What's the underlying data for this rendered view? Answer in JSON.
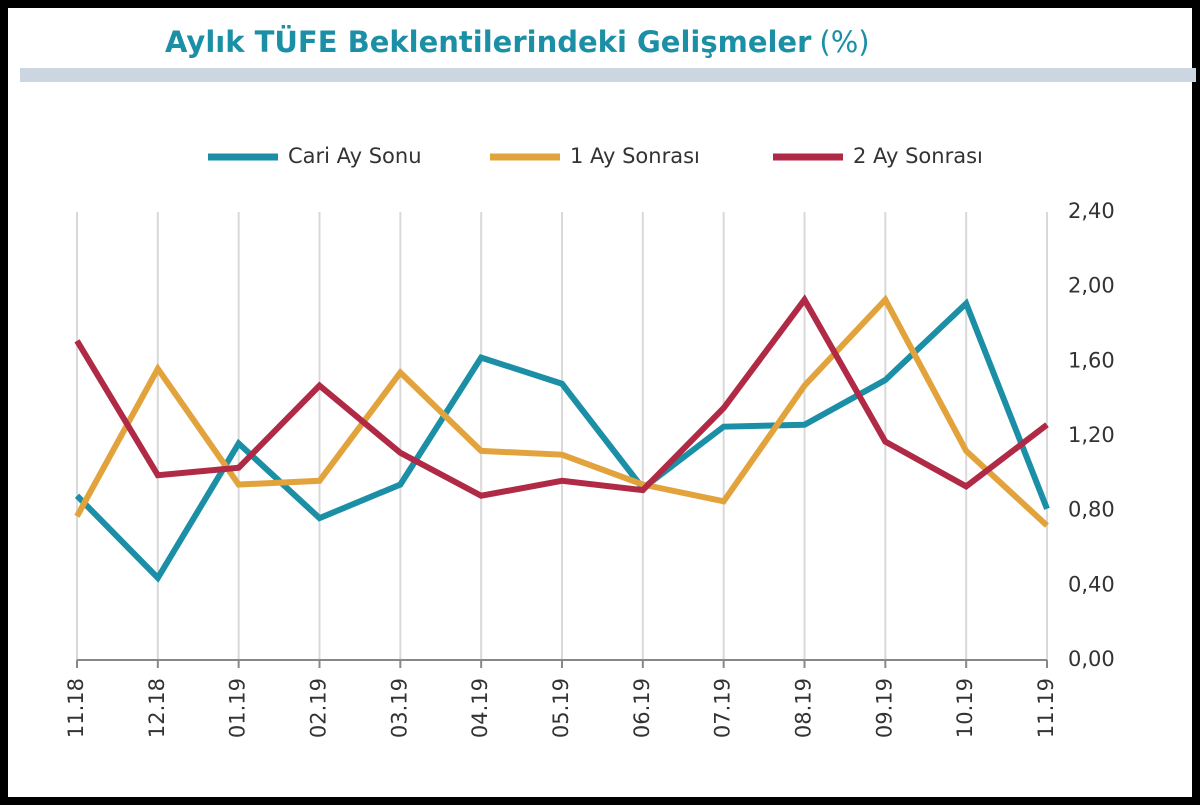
{
  "chart_data": {
    "type": "line",
    "title": "Aylık TÜFE Beklentilerindeki Gelişmeler",
    "title_unit": "(%)",
    "categories": [
      "11.18",
      "12.18",
      "01.19",
      "02.19",
      "03.19",
      "04.19",
      "05.19",
      "06.19",
      "07.19",
      "08.19",
      "09.19",
      "10.19",
      "11.19"
    ],
    "series": [
      {
        "name": "Cari Ay Sonu",
        "color": "#1b8fa6",
        "values": [
          0.88,
          0.44,
          1.16,
          0.76,
          0.94,
          1.62,
          1.48,
          0.92,
          1.25,
          1.26,
          1.5,
          1.91,
          0.81
        ]
      },
      {
        "name": "1 Ay Sonrası",
        "color": "#e3a33c",
        "values": [
          0.77,
          1.56,
          0.94,
          0.96,
          1.54,
          1.12,
          1.1,
          0.94,
          0.85,
          1.47,
          1.93,
          1.12,
          0.72
        ]
      },
      {
        "name": "2 Ay Sonrası",
        "color": "#b02a45",
        "values": [
          1.71,
          0.99,
          1.03,
          1.47,
          1.11,
          0.88,
          0.96,
          0.91,
          1.35,
          1.93,
          1.17,
          0.93,
          1.26
        ]
      }
    ],
    "ylim": [
      0,
      2.4
    ],
    "yticks": [
      {
        "value": 0,
        "label": "0,00"
      },
      {
        "value": 0.4,
        "label": "0,40"
      },
      {
        "value": 0.8,
        "label": "0,80"
      },
      {
        "value": 1.2,
        "label": "1,20"
      },
      {
        "value": 1.6,
        "label": "1,60"
      },
      {
        "value": 2.0,
        "label": "2,00"
      },
      {
        "value": 2.4,
        "label": "2,40"
      }
    ],
    "grid": "x",
    "legend": "top"
  }
}
